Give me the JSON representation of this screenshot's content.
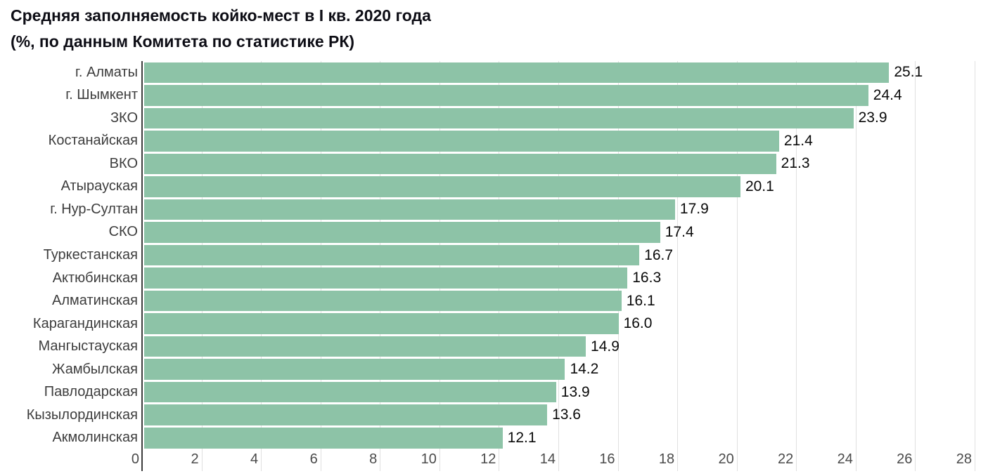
{
  "header": {
    "title_line1": "Средняя заполняемость койко-мест в I кв. 2020 года",
    "title_line2": "(%, по данным Комитета по статистике РК)"
  },
  "chart_data": {
    "type": "bar",
    "orientation": "horizontal",
    "title": "Средняя заполняемость койко-мест в I кв. 2020 года",
    "subtitle": "(%, по данным Комитета по статистике РК)",
    "categories": [
      "г. Алматы",
      "г. Шымкент",
      "ЗКО",
      "Костанайская",
      "ВКО",
      "Атырауская",
      "г. Нур-Султан",
      "СКО",
      "Туркестанская",
      "Актюбинская",
      "Алматинская",
      "Карагандинская",
      "Мангыстауская",
      "Жамбылская",
      "Павлодарская",
      "Кызылординская",
      "Акмолинская"
    ],
    "values": [
      25.1,
      24.4,
      23.9,
      21.4,
      21.3,
      20.1,
      17.9,
      17.4,
      16.7,
      16.3,
      16.1,
      16.0,
      14.9,
      14.2,
      13.9,
      13.6,
      12.1
    ],
    "value_labels": [
      "25.1",
      "24.4",
      "23.9",
      "21.4",
      "21.3",
      "20.1",
      "17.9",
      "17.4",
      "16.7",
      "16.3",
      "16.1",
      "16.0",
      "14.9",
      "14.2",
      "13.9",
      "13.6",
      "12.1"
    ],
    "xlabel": "",
    "ylabel": "",
    "xlim": [
      0,
      28
    ],
    "x_ticks": [
      0,
      2,
      4,
      6,
      8,
      10,
      12,
      14,
      16,
      18,
      20,
      22,
      24,
      26,
      28
    ],
    "grid": "vertical-gridlines-on",
    "legend": "none",
    "colors": {
      "bar": "#8dc3a7",
      "gridline": "#e0e0e0",
      "axis_line": "#3d3d3d",
      "tick_label": "#4a4a4a",
      "category_label": "#3d3d3d",
      "value_label": "#0a0a0a",
      "title": "#0d0d15",
      "background": "#ffffff"
    }
  }
}
